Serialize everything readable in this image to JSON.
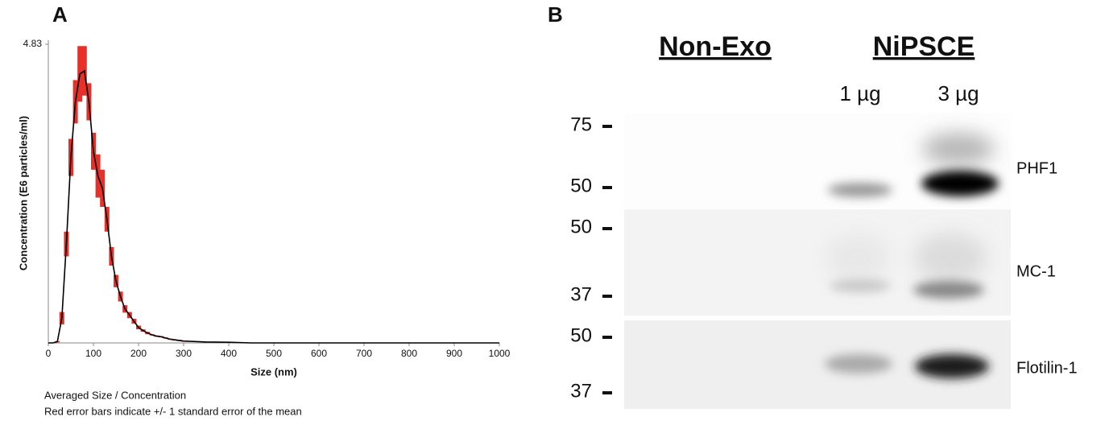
{
  "chart_data": {
    "type": "line",
    "panel_label": "A",
    "ylabel": "Concentration (E6 particles/ml)",
    "xlabel": "Size (nm)",
    "caption": [
      "Averaged Size / Concentration",
      "Red error bars indicate +/- 1 standard error of the mean"
    ],
    "x": [
      0,
      10,
      20,
      30,
      40,
      50,
      60,
      70,
      80,
      90,
      100,
      110,
      120,
      130,
      140,
      150,
      160,
      170,
      180,
      190,
      200,
      210,
      220,
      230,
      240,
      250,
      260,
      270,
      280,
      290,
      300,
      350,
      400,
      450,
      500,
      550,
      600,
      650,
      700,
      750,
      800,
      850,
      900,
      950,
      1000
    ],
    "values": [
      0,
      0,
      0.02,
      0.4,
      1.6,
      3.0,
      3.9,
      4.35,
      4.4,
      3.9,
      3.1,
      2.7,
      2.5,
      2.0,
      1.4,
      1.0,
      0.75,
      0.55,
      0.45,
      0.35,
      0.25,
      0.2,
      0.16,
      0.13,
      0.11,
      0.1,
      0.08,
      0.06,
      0.05,
      0.04,
      0.03,
      0.015,
      0.01,
      0,
      0,
      0,
      0,
      0,
      0,
      0,
      0,
      0,
      0,
      0,
      0
    ],
    "errors": [
      0,
      0,
      0.01,
      0.1,
      0.2,
      0.3,
      0.35,
      0.45,
      0.4,
      0.3,
      0.3,
      0.35,
      0.3,
      0.2,
      0.15,
      0.1,
      0.08,
      0.06,
      0.05,
      0.04,
      0.03,
      0.02,
      0.02,
      0.01,
      0.01,
      0.01,
      0.01,
      0.01,
      0.01,
      0.01,
      0.01,
      0.005,
      0.005,
      0,
      0,
      0,
      0,
      0,
      0,
      0,
      0,
      0,
      0,
      0,
      0
    ],
    "color": "#000000",
    "error_color": "#e8302a",
    "xlim": [
      0,
      1000
    ],
    "xticks": [
      0,
      100,
      200,
      300,
      400,
      500,
      600,
      700,
      800,
      900,
      1000
    ],
    "ylim": [
      0,
      4.83
    ],
    "yticks": [
      4.83
    ]
  },
  "panel_b": {
    "label": "B",
    "groups": [
      "Non-Exo",
      "NiPSCE"
    ],
    "lanes": [
      "1 µg",
      "3 µg"
    ],
    "blots": [
      {
        "name": "PHF1",
        "markers": [
          75,
          50
        ]
      },
      {
        "name": "MC-1",
        "markers": [
          50,
          37
        ]
      },
      {
        "name": "Flotilin-1",
        "markers": [
          50,
          37
        ]
      }
    ]
  }
}
